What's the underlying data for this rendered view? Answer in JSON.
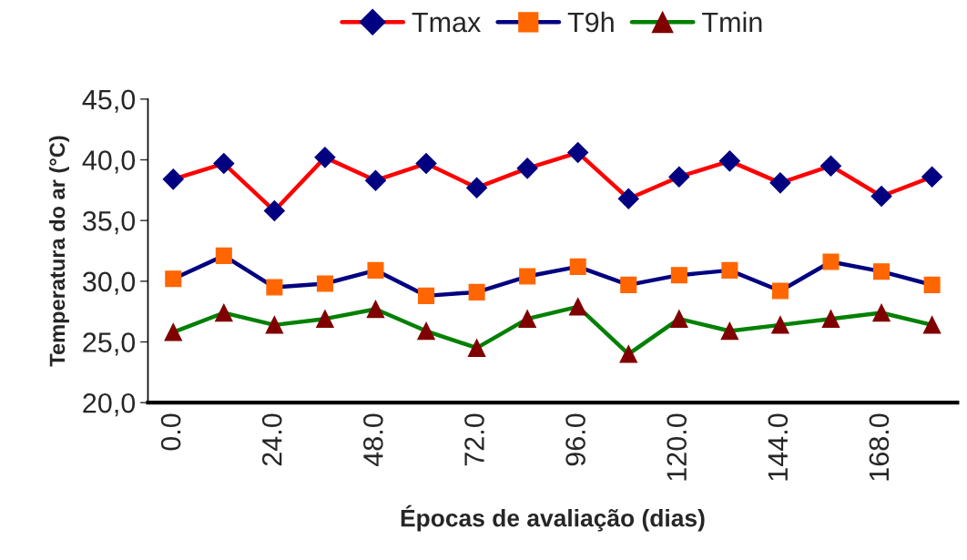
{
  "chart_data": {
    "type": "line",
    "xlabel": "Épocas de avaliação (dias)",
    "ylabel": "Temperatura do ar (°C)",
    "categories": [
      "0.0",
      null,
      "24.0",
      null,
      "48.0",
      null,
      "72.0",
      null,
      "96.0",
      null,
      "120.0",
      null,
      "144.0",
      null,
      "168.0",
      null
    ],
    "series": [
      {
        "name": "Tmax",
        "color": "#ff0000",
        "colors": [
          "#000080",
          "#000080",
          "#000080",
          "#000080",
          "#000080",
          "#000080",
          "#000080",
          "#000080",
          "#000080",
          "#000080",
          "#000080",
          "#000080",
          "#000080",
          "#000080",
          "#000080",
          "#000080"
        ],
        "marker": "diamond",
        "values": [
          38.4,
          39.7,
          35.8,
          40.2,
          38.3,
          39.7,
          37.7,
          39.3,
          40.6,
          36.8,
          38.6,
          39.9,
          38.1,
          39.5,
          37.0,
          38.6
        ]
      },
      {
        "name": "T9h",
        "color": "#000080",
        "colors": [
          "#ff6600",
          "#ff6600",
          "#ff6600",
          "#ff6600",
          "#ff6600",
          "#ff6600",
          "#ff6600",
          "#ff6600",
          "#ff6600",
          "#ff6600",
          "#ff6600",
          "#ff6600",
          "#ff6600",
          "#ff6600",
          "#ff6600",
          "#ff6600"
        ],
        "marker": "square",
        "values": [
          30.2,
          32.1,
          29.5,
          29.8,
          30.9,
          28.8,
          29.1,
          30.4,
          31.2,
          29.7,
          30.5,
          30.9,
          29.2,
          31.6,
          30.8,
          29.7
        ]
      },
      {
        "name": "Tmin",
        "color": "#008000",
        "colors": [
          "#800000",
          "#800000",
          "#800000",
          "#800000",
          "#800000",
          "#800000",
          "#800000",
          "#800000",
          "#800000",
          "#800000",
          "#800000",
          "#800000",
          "#800000",
          "#800000",
          "#800000",
          "#800000"
        ],
        "marker": "triangle",
        "values": [
          25.8,
          27.4,
          26.4,
          26.9,
          27.7,
          25.9,
          24.5,
          26.9,
          27.9,
          24.0,
          26.9,
          25.9,
          26.4,
          26.9,
          27.4,
          26.4
        ]
      }
    ],
    "ylim": [
      20,
      45
    ],
    "yticks": [
      {
        "value": 20,
        "label": "20,0"
      },
      {
        "value": 25,
        "label": "25,0"
      },
      {
        "value": 30,
        "label": "30,0"
      },
      {
        "value": 35,
        "label": "35,0"
      },
      {
        "value": 40,
        "label": "40,0"
      },
      {
        "value": 45,
        "label": "45,0"
      }
    ],
    "grid": false,
    "legend": "top",
    "line_style": "solid"
  }
}
